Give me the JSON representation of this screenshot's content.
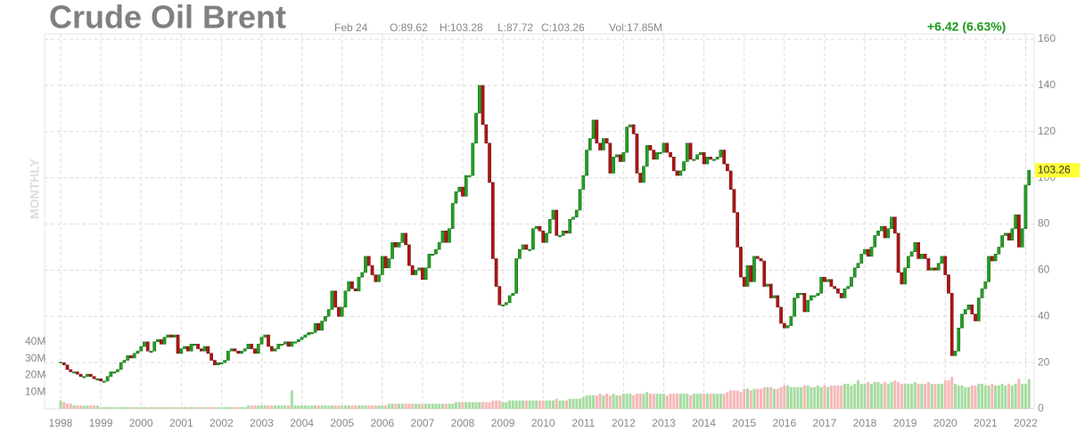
{
  "chart_data": {
    "type": "candlestick",
    "title": "Crude Oil Brent",
    "period": "MONTHLY",
    "date": "Feb 24",
    "open": "O:89.62",
    "high": "H:103.28",
    "low": "L:87.72",
    "close": "C:103.26",
    "volume_text": "Vol:17.85M",
    "change": "+6.42 (6.63%)",
    "last_label": "103.26",
    "categories": [
      "1998",
      null,
      null,
      null,
      null,
      null,
      null,
      null,
      null,
      null,
      null,
      null,
      "1999",
      null,
      null,
      null,
      null,
      null,
      null,
      null,
      null,
      null,
      null,
      null,
      "2000",
      null,
      null,
      null,
      null,
      null,
      null,
      null,
      null,
      null,
      null,
      null,
      "2001",
      null,
      null,
      null,
      null,
      null,
      null,
      null,
      null,
      null,
      null,
      null,
      "2002",
      null,
      null,
      null,
      null,
      null,
      null,
      null,
      null,
      null,
      null,
      null,
      "2003",
      null,
      null,
      null,
      null,
      null,
      null,
      null,
      null,
      null,
      null,
      null,
      "2004",
      null,
      null,
      null,
      null,
      null,
      null,
      null,
      null,
      null,
      null,
      null,
      "2005",
      null,
      null,
      null,
      null,
      null,
      null,
      null,
      null,
      null,
      null,
      null,
      "2006",
      null,
      null,
      null,
      null,
      null,
      null,
      null,
      null,
      null,
      null,
      null,
      "2007",
      null,
      null,
      null,
      null,
      null,
      null,
      null,
      null,
      null,
      null,
      null,
      "2008",
      null,
      null,
      null,
      null,
      null,
      null,
      null,
      null,
      null,
      null,
      null,
      "2009",
      null,
      null,
      null,
      null,
      null,
      null,
      null,
      null,
      null,
      null,
      null,
      "2010",
      null,
      null,
      null,
      null,
      null,
      null,
      null,
      null,
      null,
      null,
      null,
      "2011",
      null,
      null,
      null,
      null,
      null,
      null,
      null,
      null,
      null,
      null,
      null,
      "2012",
      null,
      null,
      null,
      null,
      null,
      null,
      null,
      null,
      null,
      null,
      null,
      "2013",
      null,
      null,
      null,
      null,
      null,
      null,
      null,
      null,
      null,
      null,
      null,
      "2014",
      null,
      null,
      null,
      null,
      null,
      null,
      null,
      null,
      null,
      null,
      null,
      "2015",
      null,
      null,
      null,
      null,
      null,
      null,
      null,
      null,
      null,
      null,
      null,
      "2016",
      null,
      null,
      null,
      null,
      null,
      null,
      null,
      null,
      null,
      null,
      null,
      "2017",
      null,
      null,
      null,
      null,
      null,
      null,
      null,
      null,
      null,
      null,
      null,
      "2018",
      null,
      null,
      null,
      null,
      null,
      null,
      null,
      null,
      null,
      null,
      null,
      "2019",
      null,
      null,
      null,
      null,
      null,
      null,
      null,
      null,
      null,
      null,
      null,
      "2020",
      null,
      null,
      null,
      null,
      null,
      null,
      null,
      null,
      null,
      null,
      null,
      "2021",
      null,
      null,
      null,
      null,
      null,
      null,
      null,
      null,
      null,
      null,
      null,
      "2022",
      null
    ],
    "values": [
      20,
      19,
      17,
      16,
      16,
      15,
      14,
      14,
      15,
      14,
      13,
      13,
      12,
      12,
      14,
      16,
      16,
      17,
      20,
      21,
      23,
      22,
      24,
      25,
      27,
      29,
      25,
      25,
      29,
      30,
      28,
      31,
      32,
      31,
      32,
      24,
      26,
      27,
      25,
      28,
      28,
      26,
      25,
      27,
      24,
      21,
      19,
      20,
      20,
      21,
      25,
      26,
      25,
      24,
      25,
      26,
      28,
      26,
      24,
      28,
      31,
      32,
      27,
      25,
      26,
      28,
      28,
      29,
      27,
      29,
      29,
      30,
      31,
      32,
      33,
      33,
      37,
      34,
      38,
      40,
      43,
      51,
      44,
      40,
      44,
      51,
      55,
      52,
      51,
      57,
      59,
      66,
      62,
      58,
      55,
      58,
      66,
      61,
      65,
      72,
      70,
      72,
      76,
      71,
      62,
      58,
      60,
      61,
      56,
      61,
      67,
      67,
      69,
      72,
      77,
      72,
      78,
      89,
      94,
      96,
      92,
      101,
      101,
      115,
      128,
      140,
      123,
      115,
      98,
      65,
      53,
      45,
      45,
      46,
      49,
      50,
      65,
      69,
      71,
      69,
      69,
      78,
      79,
      77,
      72,
      76,
      82,
      86,
      75,
      75,
      77,
      76,
      82,
      83,
      86,
      95,
      101,
      112,
      117,
      125,
      115,
      112,
      117,
      115,
      102,
      109,
      110,
      107,
      111,
      122,
      123,
      119,
      102,
      98,
      105,
      114,
      112,
      108,
      111,
      111,
      115,
      111,
      109,
      103,
      101,
      103,
      107,
      115,
      108,
      108,
      110,
      111,
      106,
      109,
      108,
      108,
      109,
      112,
      106,
      103,
      95,
      85,
      70,
      57,
      53,
      62,
      55,
      66,
      65,
      64,
      53,
      54,
      48,
      49,
      44,
      37,
      35,
      36,
      40,
      48,
      50,
      50,
      42,
      47,
      49,
      49,
      50,
      57,
      55,
      56,
      53,
      52,
      50,
      48,
      52,
      53,
      57,
      61,
      63,
      67,
      69,
      66,
      70,
      75,
      77,
      79,
      74,
      78,
      83,
      76,
      59,
      54,
      61,
      66,
      68,
      72,
      65,
      67,
      65,
      60,
      61,
      60,
      63,
      66,
      58,
      50,
      23,
      25,
      35,
      41,
      43,
      45,
      41,
      38,
      48,
      52,
      55,
      66,
      64,
      67,
      70,
      75,
      76,
      73,
      78,
      84,
      70,
      78,
      96.84,
      103.26
    ],
    "volume": [
      5,
      4,
      3,
      3,
      2,
      2,
      2,
      2,
      2,
      2,
      2,
      2,
      1,
      1,
      1,
      1,
      1,
      1,
      1,
      1,
      1,
      1,
      1,
      1,
      1,
      1,
      1,
      1,
      1,
      1,
      1,
      1,
      1,
      1,
      1,
      1,
      1,
      1,
      1,
      1,
      1,
      1,
      1,
      1,
      1,
      1,
      1,
      1,
      1,
      1,
      1,
      1,
      1,
      1,
      1,
      1,
      2,
      2,
      2,
      2,
      2,
      2,
      2,
      2,
      2,
      2,
      2,
      2,
      2,
      11,
      2,
      2,
      2,
      2,
      2,
      2,
      2,
      2,
      2,
      2,
      2,
      2,
      2,
      2,
      2,
      2,
      2,
      2,
      2,
      2,
      2,
      2,
      2,
      2,
      2,
      2,
      2,
      2,
      3,
      3,
      3,
      3,
      3,
      3,
      3,
      3,
      3,
      3,
      3,
      3,
      3,
      3,
      3,
      3,
      3,
      3,
      3,
      3,
      4,
      4,
      4,
      4,
      4,
      4,
      4,
      4,
      4,
      4,
      4,
      5,
      5,
      5,
      4,
      4,
      5,
      5,
      5,
      5,
      5,
      5,
      5,
      5,
      5,
      5,
      5,
      5,
      5,
      5,
      6,
      5,
      5,
      5,
      6,
      6,
      6,
      6,
      7,
      8,
      8,
      8,
      8,
      9,
      8,
      9,
      8,
      9,
      8,
      8,
      9,
      9,
      9,
      8,
      9,
      9,
      9,
      10,
      9,
      9,
      9,
      9,
      9,
      8,
      9,
      9,
      9,
      9,
      9,
      9,
      8,
      9,
      9,
      9,
      9,
      9,
      9,
      9,
      9,
      9,
      9,
      10,
      11,
      11,
      11,
      10,
      12,
      12,
      11,
      12,
      12,
      12,
      13,
      13,
      13,
      12,
      12,
      13,
      14,
      14,
      13,
      13,
      13,
      13,
      14,
      14,
      13,
      13,
      14,
      13,
      14,
      13,
      14,
      14,
      14,
      14,
      15,
      15,
      14,
      15,
      17,
      15,
      15,
      16,
      15,
      16,
      16,
      15,
      16,
      15,
      16,
      17,
      16,
      15,
      15,
      15,
      15,
      16,
      15,
      15,
      15,
      16,
      15,
      15,
      15,
      15,
      17,
      17,
      19,
      15,
      14,
      14,
      13,
      13,
      14,
      14,
      15,
      15,
      14,
      14,
      15,
      14,
      14,
      15,
      14,
      15,
      14,
      15,
      18,
      15,
      15,
      17.85
    ],
    "ylim": [
      0,
      160
    ],
    "yticks": [
      0,
      20,
      40,
      60,
      80,
      100,
      120,
      140,
      160
    ],
    "vlim": [
      0,
      40
    ],
    "vticks": [
      {
        "value": 10,
        "label": "10M"
      },
      {
        "value": 20,
        "label": "20M"
      },
      {
        "value": 30,
        "label": "30M"
      },
      {
        "value": 40,
        "label": "40M"
      }
    ],
    "grid": true,
    "up_color": "#22a022",
    "down_color": "#b01515",
    "up_volume_color": "#a6dca0",
    "down_volume_color": "#f6b8b8"
  }
}
